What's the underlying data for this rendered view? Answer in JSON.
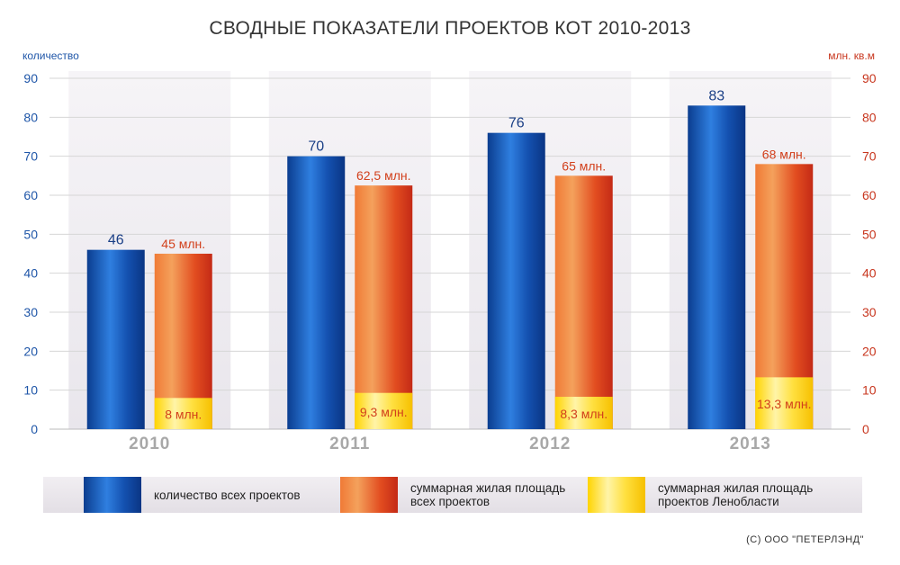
{
  "title": "СВОДНЫЕ ПОКАЗАТЕЛИ ПРОЕКТОВ КОТ  2010-2013",
  "left_axis_label": "количество",
  "right_axis_label": "млн. кв.м",
  "copyright": "(С) ООО \"ПЕТЕРЛЭНД\"",
  "legend": {
    "count": "количество всех проектов",
    "total_area": "суммарная жилая площадь всех проектов",
    "leningrad_area": "суммарная жилая площадь проектов Ленобласти"
  },
  "colors": {
    "blue": "#1a56b8",
    "orange": "#e8551f",
    "yellow": "#ffd21f",
    "left_axis": "#1f56a8",
    "right_axis": "#c8361e"
  },
  "chart_data": {
    "type": "bar",
    "categories": [
      "2010",
      "2011",
      "2012",
      "2013"
    ],
    "ylim": [
      0,
      90
    ],
    "yticks": [
      0,
      10,
      20,
      30,
      40,
      50,
      60,
      70,
      80,
      90
    ],
    "grid": true,
    "legend_position": "bottom",
    "series": [
      {
        "name": "количество всех проектов",
        "axis": "left",
        "values": [
          46,
          70,
          76,
          83
        ],
        "labels": [
          "46",
          "70",
          "76",
          "83"
        ]
      },
      {
        "name": "суммарная жилая площадь всех проектов",
        "axis": "right",
        "values": [
          45,
          62.5,
          65,
          68
        ],
        "labels": [
          "45 млн.",
          "62,5 млн.",
          "65 млн.",
          "68 млн."
        ]
      },
      {
        "name": "суммарная жилая площадь проектов Ленобласти",
        "axis": "right",
        "values": [
          8,
          9.3,
          8.3,
          13.3
        ],
        "labels": [
          "8 млн.",
          "9,3 млн.",
          "8,3 млн.",
          "13,3 млн."
        ]
      }
    ]
  }
}
